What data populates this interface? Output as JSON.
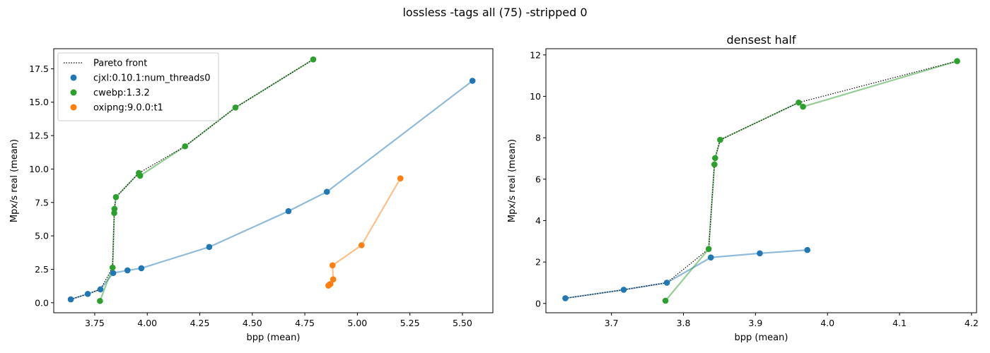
{
  "suptitle": "lossless -tags all (75) -stripped 0",
  "colors": {
    "cjxl": "#1f77b4",
    "cwebp": "#2ca02c",
    "oxipng": "#ff7f0e",
    "pareto": "#000000"
  },
  "chart_data": [
    {
      "type": "scatter",
      "title": "",
      "xlabel": "bpp (mean)",
      "ylabel": "Mpx/s real (mean)",
      "xlim": [
        3.555,
        5.645
      ],
      "ylim": [
        -0.75,
        19.0
      ],
      "xticks": [
        "3.75",
        "4.00",
        "4.25",
        "4.50",
        "4.75",
        "5.00",
        "5.25",
        "5.50"
      ],
      "yticks": [
        "0.0",
        "2.5",
        "5.0",
        "7.5",
        "10.0",
        "12.5",
        "15.0",
        "17.5"
      ],
      "legend": {
        "placement": "upper left",
        "entries": [
          "Pareto front",
          "cjxl:0.10.1:num_threads0",
          "cwebp:1.3.2",
          "oxipng:9.0.0:t1"
        ]
      },
      "series": [
        {
          "name": "cjxl:0.10.1:num_threads0",
          "color": "#1f77b4",
          "x": [
            3.636,
            3.717,
            3.777,
            3.838,
            3.906,
            3.972,
            4.295,
            4.672,
            4.855,
            5.548
          ],
          "y": [
            0.25,
            0.66,
            1.0,
            2.22,
            2.42,
            2.58,
            4.17,
            6.85,
            8.3,
            16.6
          ]
        },
        {
          "name": "cwebp:1.3.2",
          "color": "#2ca02c",
          "x": [
            3.775,
            3.835,
            3.843,
            3.844,
            3.851,
            3.96,
            3.966,
            4.18,
            4.42,
            4.79
          ],
          "y": [
            0.13,
            2.63,
            6.71,
            7.02,
            7.9,
            9.7,
            9.5,
            11.7,
            14.6,
            18.2
          ]
        },
        {
          "name": "oxipng:9.0.0:t1",
          "color": "#ff7f0e",
          "x": [
            4.862,
            4.866,
            4.872,
            4.885,
            4.882,
            5.02,
            5.205
          ],
          "y": [
            1.28,
            1.35,
            1.4,
            1.75,
            2.8,
            4.3,
            9.3
          ]
        }
      ],
      "pareto_front": {
        "name": "Pareto front",
        "x": [
          3.636,
          3.717,
          3.777,
          3.835,
          3.843,
          3.844,
          3.851,
          3.96,
          4.18,
          4.42,
          4.79
        ],
        "y": [
          0.25,
          0.66,
          1.0,
          2.63,
          6.71,
          7.02,
          7.9,
          9.7,
          11.7,
          14.6,
          18.2
        ]
      }
    },
    {
      "type": "scatter",
      "title": "densest half",
      "xlabel": "bpp (mean)",
      "ylabel": "Mpx/s real (mean)",
      "xlim": [
        3.609,
        4.207
      ],
      "ylim": [
        -0.45,
        12.3
      ],
      "xticks": [
        "3.7",
        "3.8",
        "3.9",
        "4.0",
        "4.1",
        "4.2"
      ],
      "yticks": [
        "0",
        "2",
        "4",
        "6",
        "8",
        "10",
        "12"
      ],
      "series": [
        {
          "name": "cjxl:0.10.1:num_threads0",
          "color": "#1f77b4",
          "x": [
            3.636,
            3.717,
            3.777,
            3.838,
            3.906,
            3.972
          ],
          "y": [
            0.25,
            0.66,
            1.0,
            2.22,
            2.42,
            2.58
          ]
        },
        {
          "name": "cwebp:1.3.2",
          "color": "#2ca02c",
          "x": [
            3.775,
            3.835,
            3.843,
            3.844,
            3.851,
            3.96,
            3.966,
            4.18
          ],
          "y": [
            0.13,
            2.63,
            6.71,
            7.02,
            7.9,
            9.7,
            9.5,
            11.7
          ]
        }
      ],
      "pareto_front": {
        "name": "Pareto front",
        "x": [
          3.636,
          3.717,
          3.777,
          3.835,
          3.843,
          3.844,
          3.851,
          3.96,
          4.18
        ],
        "y": [
          0.25,
          0.66,
          1.0,
          2.63,
          6.71,
          7.02,
          7.9,
          9.7,
          11.7
        ]
      }
    }
  ]
}
